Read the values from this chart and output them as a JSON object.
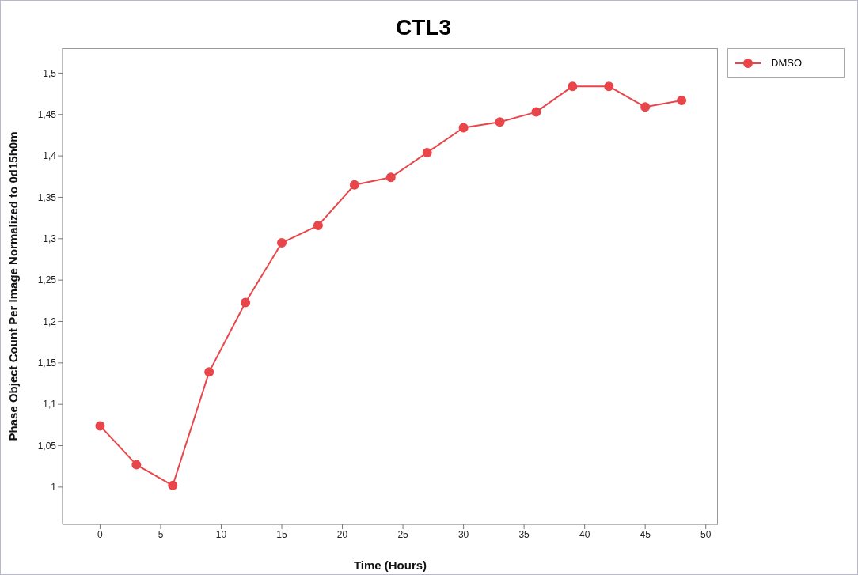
{
  "chart_data": {
    "type": "line",
    "title": "CTL3",
    "xlabel": "Time (Hours)",
    "ylabel": "Phase Object Count Per Image Normalized to 0d15h0m",
    "x": [
      0,
      3,
      6,
      9,
      12,
      15,
      18,
      21,
      24,
      27,
      30,
      33,
      36,
      39,
      42,
      45,
      48
    ],
    "series": [
      {
        "name": "DMSO",
        "color": "#e8464a",
        "values": [
          1.074,
          1.027,
          1.002,
          1.139,
          1.223,
          1.295,
          1.316,
          1.365,
          1.374,
          1.404,
          1.434,
          1.441,
          1.453,
          1.484,
          1.484,
          1.459,
          1.467
        ]
      }
    ],
    "xlim": [
      -3.1,
      51
    ],
    "xticks": [
      0,
      5,
      10,
      15,
      20,
      25,
      30,
      35,
      40,
      45,
      50
    ],
    "ylim": [
      0.955,
      1.53
    ],
    "yticks": [
      {
        "value": 1,
        "label": "1"
      },
      {
        "value": 1.05,
        "label": "1,05"
      },
      {
        "value": 1.1,
        "label": "1,1"
      },
      {
        "value": 1.15,
        "label": "1,15"
      },
      {
        "value": 1.2,
        "label": "1,2"
      },
      {
        "value": 1.25,
        "label": "1,25"
      },
      {
        "value": 1.3,
        "label": "1,3"
      },
      {
        "value": 1.35,
        "label": "1,35"
      },
      {
        "value": 1.4,
        "label": "1,4"
      },
      {
        "value": 1.45,
        "label": "1,45"
      },
      {
        "value": 1.5,
        "label": "1,5"
      }
    ],
    "grid": false,
    "legend": "top right",
    "marker": "circle",
    "line_style": "solid"
  }
}
